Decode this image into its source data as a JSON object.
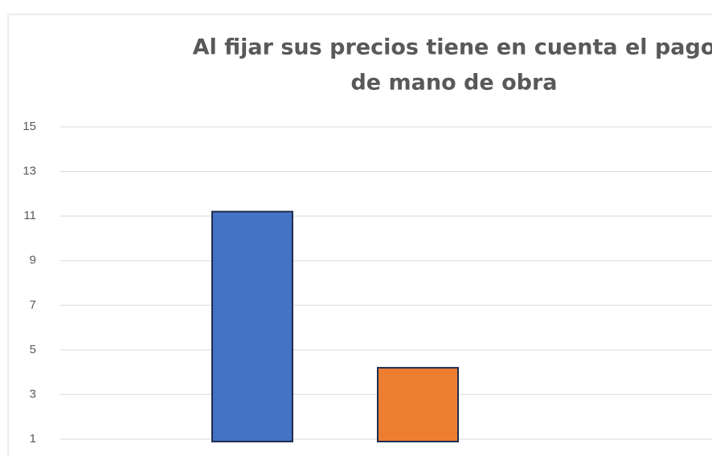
{
  "chart_data": {
    "type": "bar",
    "title": [
      "Al fijar sus precios tiene en cuenta el pago",
      "de mano de obra"
    ],
    "categories": [
      null,
      null
    ],
    "series": [
      {
        "values": [
          11.2,
          4.2
        ]
      }
    ],
    "colors": [
      "#4472c4",
      "#ed7d31"
    ],
    "ylim": [
      1,
      15
    ],
    "yticks": [
      1,
      3,
      5,
      7,
      9,
      11,
      13,
      15
    ],
    "grid": true
  }
}
